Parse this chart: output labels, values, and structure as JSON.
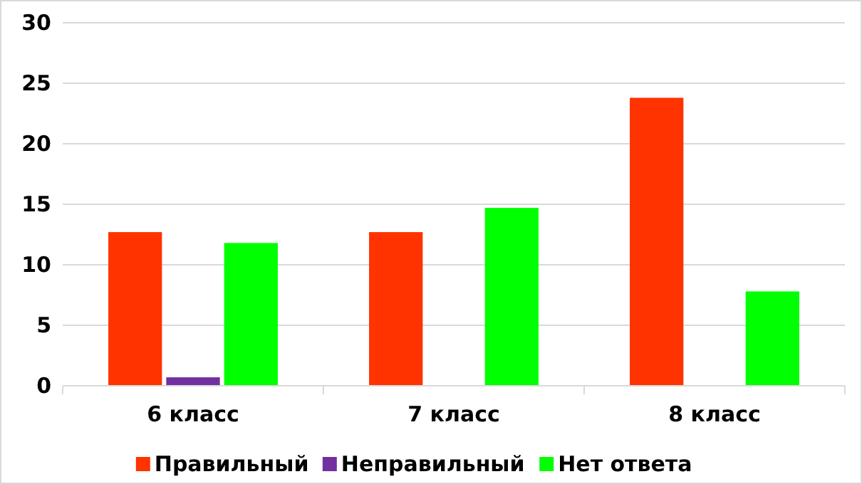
{
  "chart_data": {
    "type": "bar",
    "categories": [
      "6 класс",
      "7 класс",
      "8 класс"
    ],
    "series": [
      {
        "name": "Правильный",
        "color": "#ff3300",
        "values": [
          12.7,
          12.7,
          23.8
        ]
      },
      {
        "name": "Неправильный",
        "color": "#7030a0",
        "values": [
          0.7,
          0,
          0
        ]
      },
      {
        "name": "Нет ответа",
        "color": "#00ff00",
        "values": [
          11.8,
          14.7,
          7.8
        ]
      }
    ],
    "ylim": [
      0,
      30
    ],
    "yticks": [
      0,
      5,
      10,
      15,
      20,
      25,
      30
    ],
    "grid": "y",
    "legend": "bottom"
  }
}
